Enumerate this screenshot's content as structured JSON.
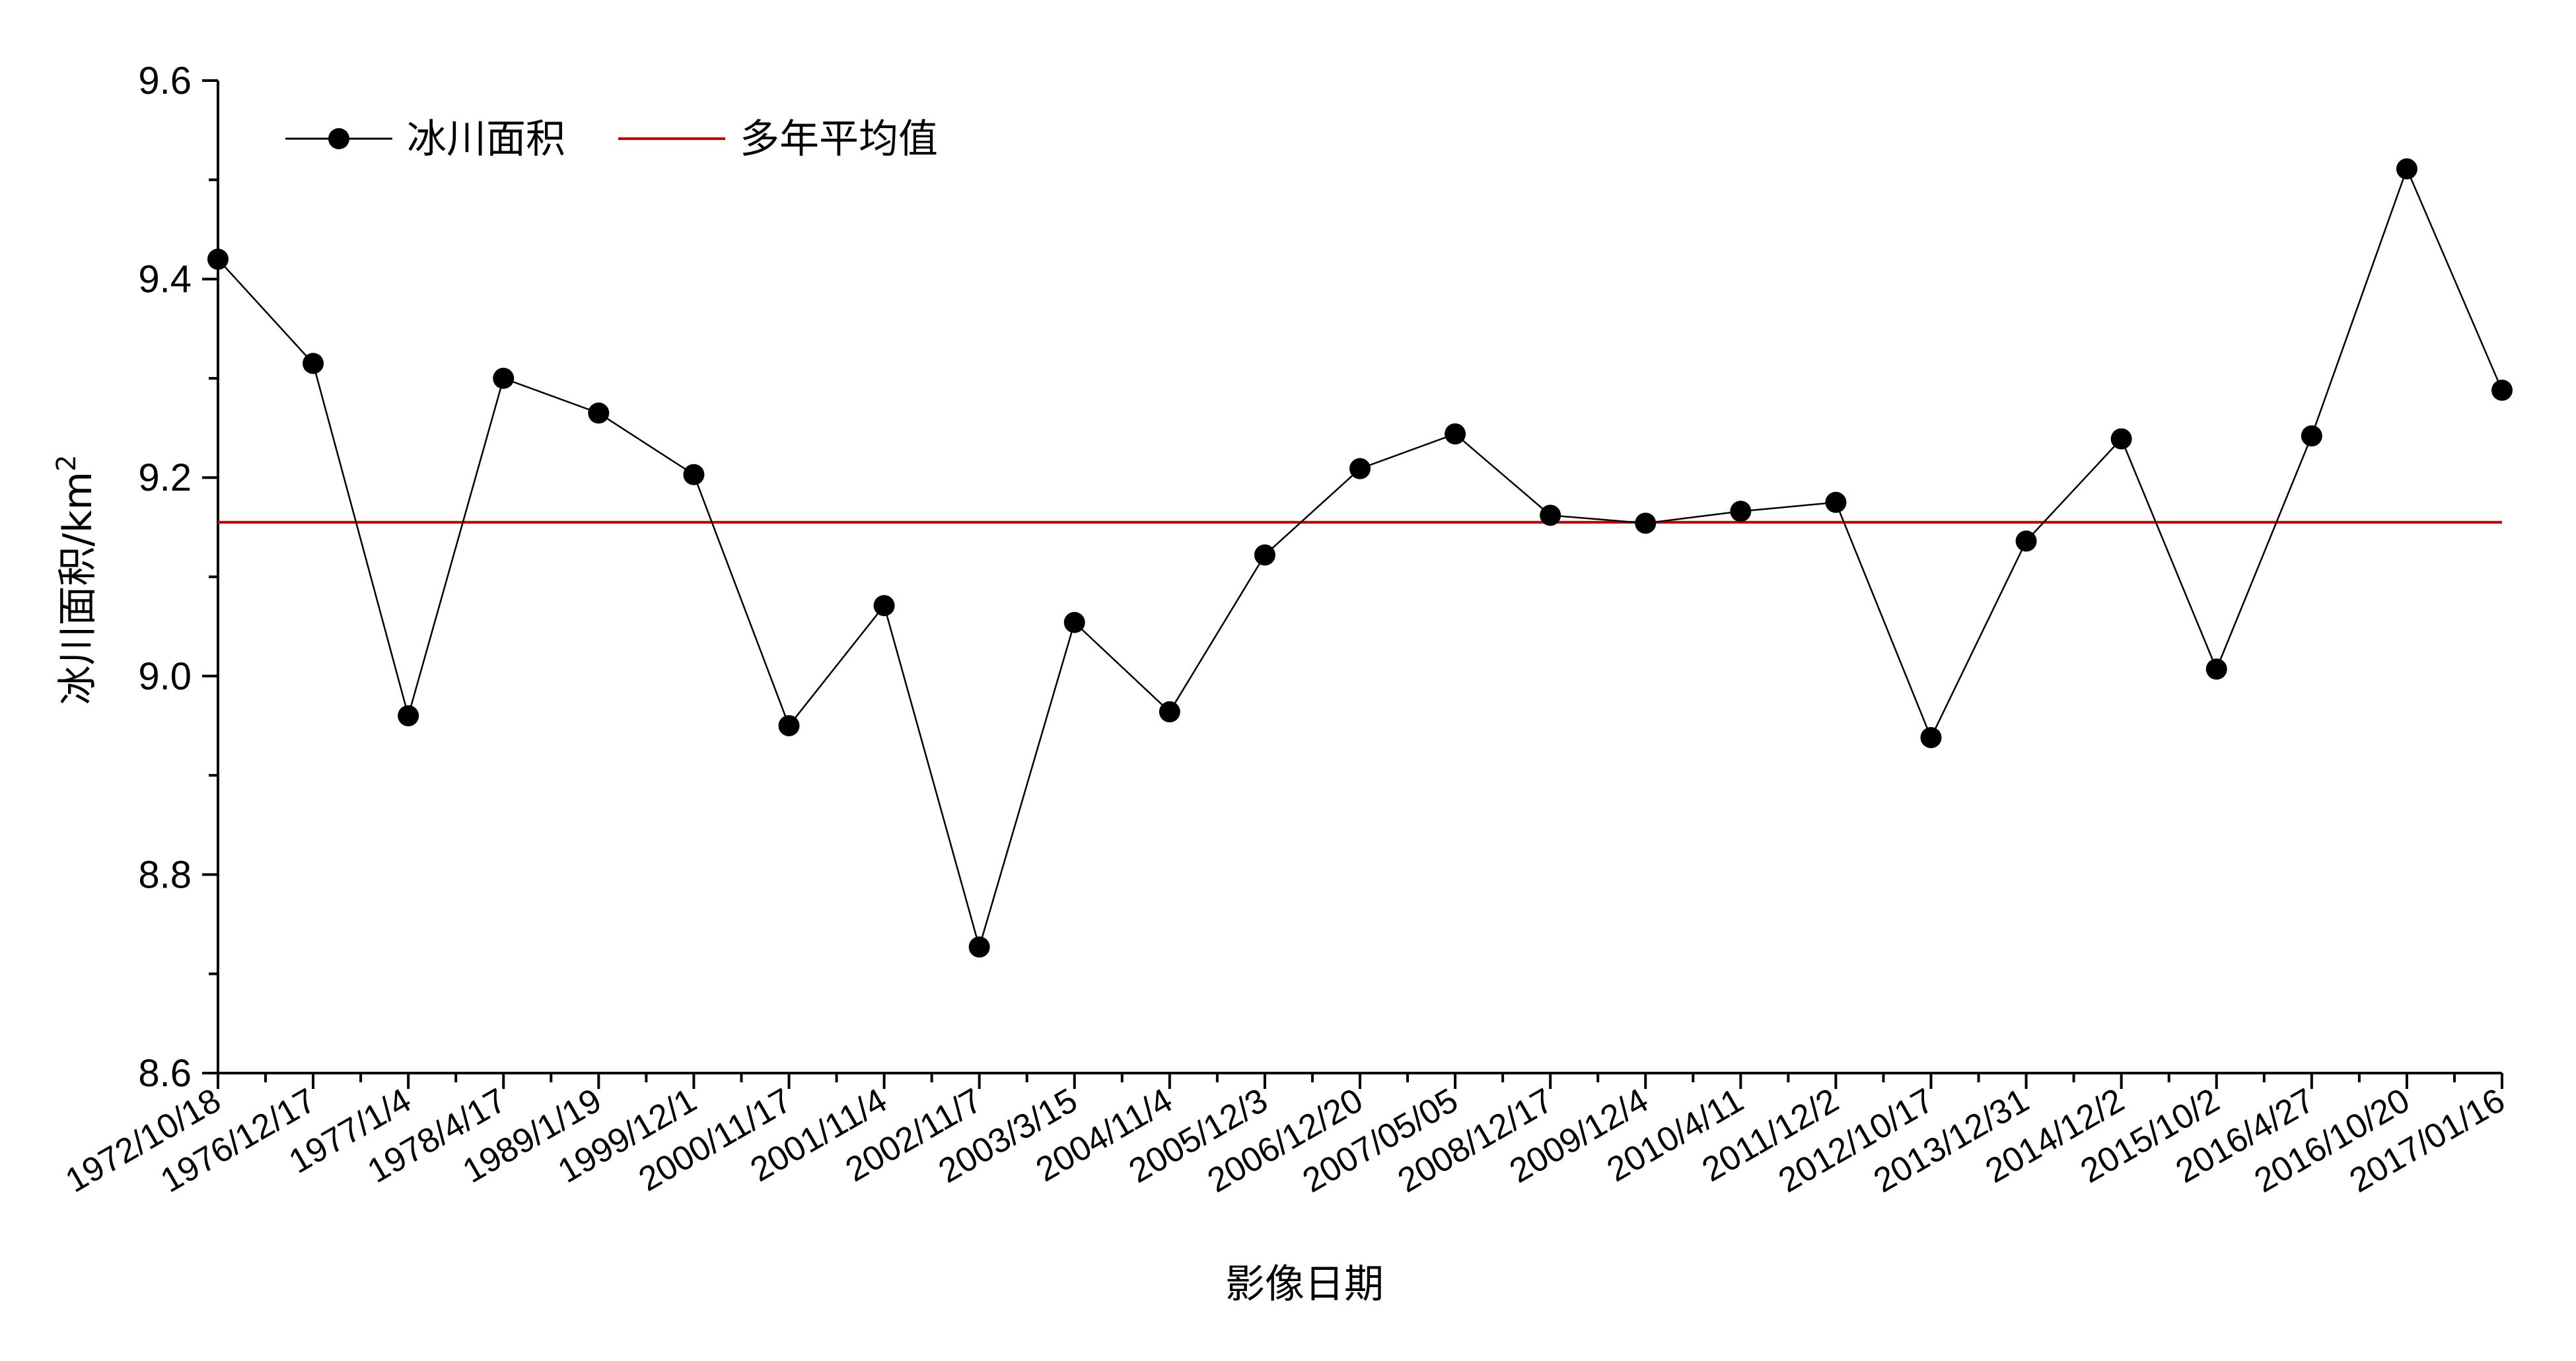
{
  "chart_data": {
    "type": "line",
    "xlabel": "影像日期",
    "ylabel": "冰川面积/km",
    "ylabel_superscript": "2",
    "ylim": [
      8.6,
      9.6
    ],
    "yticks": [
      "8.6",
      "8.8",
      "9.0",
      "9.2",
      "9.4",
      "9.6"
    ],
    "categories": [
      "1972/10/18",
      "1976/12/17",
      "1977/1/4",
      "1978/4/17",
      "1989/1/19",
      "1999/12/1",
      "2000/11/17",
      "2001/11/4",
      "2002/11/7",
      "2003/3/15",
      "2004/11/4",
      "2005/12/3",
      "2006/12/20",
      "2007/05/05",
      "2008/12/17",
      "2009/12/4",
      "2010/4/11",
      "2011/12/2",
      "2012/10/17",
      "2013/12/31",
      "2014/12/2",
      "2015/10/2",
      "2016/4/27",
      "2016/10/20",
      "2017/01/16"
    ],
    "series": [
      {
        "name": "冰川面积",
        "color": "#000000",
        "marker": "filled-circle",
        "values": [
          9.42,
          9.315,
          8.96,
          9.3,
          9.265,
          9.203,
          8.95,
          9.071,
          8.727,
          9.054,
          8.964,
          9.122,
          9.209,
          9.244,
          9.162,
          9.154,
          9.166,
          9.175,
          8.938,
          9.136,
          9.239,
          9.007,
          9.242,
          9.511,
          9.288
        ]
      },
      {
        "name": "多年平均值",
        "color": "#cc0000",
        "type": "hline",
        "value": 9.155
      }
    ],
    "legend_position": "top-left",
    "grid": false
  }
}
